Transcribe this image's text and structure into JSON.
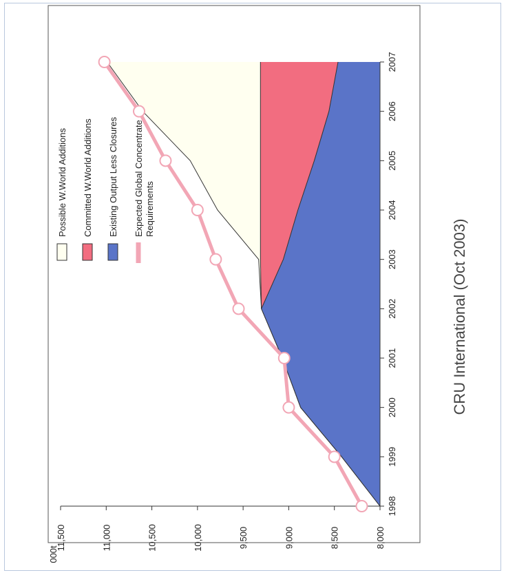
{
  "chart_data": {
    "type": "area",
    "orientation": "rotated-90-ccw",
    "title": "",
    "xlabel": "",
    "ylabel": "",
    "y_unit_label": "000t",
    "x": [
      "1998",
      "1999",
      "2000",
      "2001",
      "2002",
      "2003",
      "2004",
      "2005",
      "2006",
      "2007"
    ],
    "ylim": [
      8000,
      11500
    ],
    "y_ticks": [
      "8,000",
      "8,500",
      "9,000",
      "9,500",
      "10,000",
      "10,500",
      "11,000",
      "11,500"
    ],
    "x_tick_labels": [
      "1998",
      "1999",
      "2000",
      "2001",
      "2002",
      "2003",
      "2004",
      "2005",
      "2006",
      "2007"
    ],
    "series": [
      {
        "name": "Possible W.World Additions",
        "kind": "stacked-area",
        "color": "#fffff0",
        "values": [
          8000,
          8420,
          8870,
          9070,
          9300,
          9330,
          9780,
          10080,
          10600,
          10990
        ]
      },
      {
        "name": "Committed W.World Additions",
        "kind": "stacked-area",
        "color": "#f26d80",
        "values": [
          8000,
          8420,
          8870,
          9070,
          9300,
          9310,
          9310,
          9310,
          9310,
          9310
        ]
      },
      {
        "name": "Existing Output Less Closures",
        "kind": "stacked-area",
        "color": "#5a74c8",
        "values": [
          8000,
          8420,
          8870,
          9070,
          9300,
          9060,
          8900,
          8720,
          8560,
          8460
        ]
      },
      {
        "name": "Expected Global Concentrate Requirements",
        "kind": "line",
        "color": "#f2a6b5",
        "values": [
          8200,
          8500,
          9000,
          9050,
          9550,
          9800,
          10000,
          10350,
          10640,
          11020
        ]
      }
    ],
    "legend_position": "top-left",
    "grid": false,
    "source_note": "CRU International (Oct 2003)"
  }
}
